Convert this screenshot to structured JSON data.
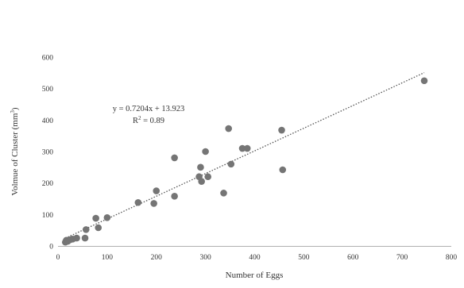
{
  "chart_data": {
    "type": "scatter",
    "title": "",
    "xlabel": "Number of Eggs",
    "ylabel": "Volmue of Cluster (mm",
    "ylabel_superscript": "3",
    "ylabel_suffix": ")",
    "xlim": [
      0,
      800
    ],
    "ylim": [
      0,
      600
    ],
    "xticks": [
      0,
      100,
      200,
      300,
      400,
      500,
      600,
      700,
      800
    ],
    "yticks": [
      0,
      100,
      200,
      300,
      400,
      500,
      600
    ],
    "grid": false,
    "legend": "none",
    "marker_color": "#757575",
    "trendline": {
      "type": "linear",
      "slope": 0.7204,
      "intercept": 13.923,
      "x_range": [
        15,
        745
      ],
      "style": "dotted",
      "color": "#555555",
      "equation_label": "y = 0.7204x + 13.923",
      "r2_label_prefix": "R",
      "r2_label_sup": "2",
      "r2_label_suffix": " = 0.89"
    },
    "points": [
      {
        "x": 15,
        "y": 12
      },
      {
        "x": 17,
        "y": 18
      },
      {
        "x": 20,
        "y": 15
      },
      {
        "x": 25,
        "y": 20
      },
      {
        "x": 30,
        "y": 22
      },
      {
        "x": 38,
        "y": 25
      },
      {
        "x": 55,
        "y": 25
      },
      {
        "x": 57,
        "y": 52
      },
      {
        "x": 77,
        "y": 88
      },
      {
        "x": 82,
        "y": 58
      },
      {
        "x": 100,
        "y": 90
      },
      {
        "x": 163,
        "y": 138
      },
      {
        "x": 195,
        "y": 135
      },
      {
        "x": 200,
        "y": 175
      },
      {
        "x": 237,
        "y": 158
      },
      {
        "x": 237,
        "y": 280
      },
      {
        "x": 287,
        "y": 220
      },
      {
        "x": 290,
        "y": 250
      },
      {
        "x": 292,
        "y": 205
      },
      {
        "x": 300,
        "y": 300
      },
      {
        "x": 305,
        "y": 220
      },
      {
        "x": 337,
        "y": 168
      },
      {
        "x": 347,
        "y": 373
      },
      {
        "x": 352,
        "y": 260
      },
      {
        "x": 375,
        "y": 310
      },
      {
        "x": 385,
        "y": 310
      },
      {
        "x": 455,
        "y": 368
      },
      {
        "x": 457,
        "y": 242
      },
      {
        "x": 745,
        "y": 525
      }
    ]
  }
}
